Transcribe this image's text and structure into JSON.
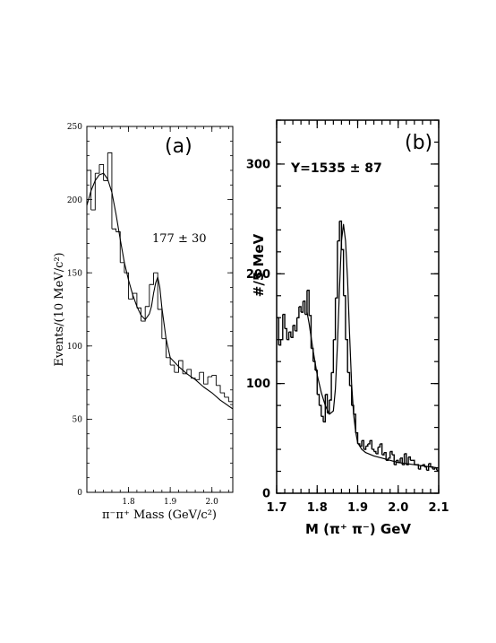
{
  "chart_data": [
    {
      "panel_label": "(a)",
      "type": "line",
      "annotation": "177 ± 30",
      "xlabel": "π⁻π⁺ Mass (GeV/c²)",
      "ylabel": "Events/(10 MeV/c²)",
      "xlim": [
        1.7,
        2.05
      ],
      "ylim": [
        0,
        250
      ],
      "xticks": [
        "1.8",
        "1.9",
        "2.0"
      ],
      "xtick_values": [
        1.8,
        1.9,
        2.0
      ],
      "yticks": [
        "0",
        "50",
        "100",
        "150",
        "200",
        "250"
      ],
      "ytick_values": [
        0,
        50,
        100,
        150,
        200,
        250
      ],
      "grid": false,
      "series": [
        {
          "kind": "histogram",
          "bin_width": 0.01,
          "x_start": 1.7,
          "values": [
            220,
            193,
            218,
            224,
            213,
            232,
            180,
            178,
            157,
            150,
            132,
            136,
            126,
            117,
            127,
            142,
            150,
            125,
            105,
            92,
            87,
            82,
            90,
            81,
            84,
            78,
            77,
            82,
            74,
            79,
            80,
            73,
            68,
            65,
            62
          ]
        },
        {
          "kind": "curve",
          "x": [
            1.7,
            1.71,
            1.72,
            1.73,
            1.74,
            1.75,
            1.76,
            1.77,
            1.78,
            1.79,
            1.8,
            1.81,
            1.82,
            1.83,
            1.84,
            1.85,
            1.855,
            1.86,
            1.865,
            1.87,
            1.875,
            1.88,
            1.89,
            1.9,
            1.92,
            1.94,
            1.96,
            1.98,
            2.0,
            2.02,
            2.05
          ],
          "y": [
            196,
            206,
            213,
            217,
            218,
            214,
            205,
            190,
            173,
            157,
            145,
            135,
            127,
            121,
            118,
            122,
            127,
            136,
            143,
            147,
            140,
            126,
            105,
            92,
            86,
            81,
            77,
            72,
            68,
            63,
            57
          ]
        }
      ]
    },
    {
      "panel_label": "(b)",
      "type": "line",
      "annotation": "Y=1535 ± 87",
      "xlabel": "M (π⁺ π⁻) GeV",
      "ylabel": "#/5 MeV",
      "xlim": [
        1.7,
        2.1
      ],
      "ylim": [
        0,
        340
      ],
      "xticks": [
        "1.7",
        "1.8",
        "1.9",
        "2.0",
        "2.1"
      ],
      "xtick_values": [
        1.7,
        1.8,
        1.9,
        2.0,
        2.1
      ],
      "yticks": [
        "0",
        "100",
        "200",
        "300"
      ],
      "ytick_values": [
        0,
        100,
        200,
        300
      ],
      "grid": false,
      "series": [
        {
          "kind": "histogram",
          "bin_width": 0.005,
          "x_start": 1.7,
          "values": [
            160,
            135,
            140,
            163,
            150,
            140,
            147,
            142,
            153,
            148,
            160,
            170,
            165,
            175,
            163,
            185,
            162,
            132,
            120,
            112,
            90,
            80,
            70,
            65,
            90,
            73,
            85,
            110,
            140,
            178,
            230,
            248,
            222,
            180,
            140,
            110,
            98,
            80,
            72,
            55,
            45,
            43,
            48,
            40,
            43,
            45,
            48,
            40,
            38,
            36,
            42,
            45,
            35,
            37,
            30,
            32,
            38,
            35,
            26,
            30,
            28,
            32,
            26,
            36,
            26,
            33,
            30,
            30,
            26,
            26,
            22,
            25,
            26,
            24,
            21,
            27,
            24,
            22,
            23,
            21
          ]
        },
        {
          "kind": "curve",
          "x": [
            1.775,
            1.78,
            1.79,
            1.8,
            1.81,
            1.82,
            1.83,
            1.84,
            1.845,
            1.85,
            1.855,
            1.86,
            1.865,
            1.87,
            1.875,
            1.88,
            1.885,
            1.89,
            1.895,
            1.9,
            1.91,
            1.92,
            1.94,
            1.96,
            1.98,
            2.0,
            2.02,
            2.04,
            2.06,
            2.08,
            2.1
          ],
          "y": [
            165,
            155,
            130,
            108,
            92,
            80,
            72,
            75,
            95,
            135,
            185,
            230,
            245,
            230,
            195,
            145,
            100,
            72,
            56,
            46,
            40,
            37,
            34,
            32,
            30,
            28,
            27,
            26,
            25,
            24,
            23
          ]
        }
      ]
    }
  ]
}
